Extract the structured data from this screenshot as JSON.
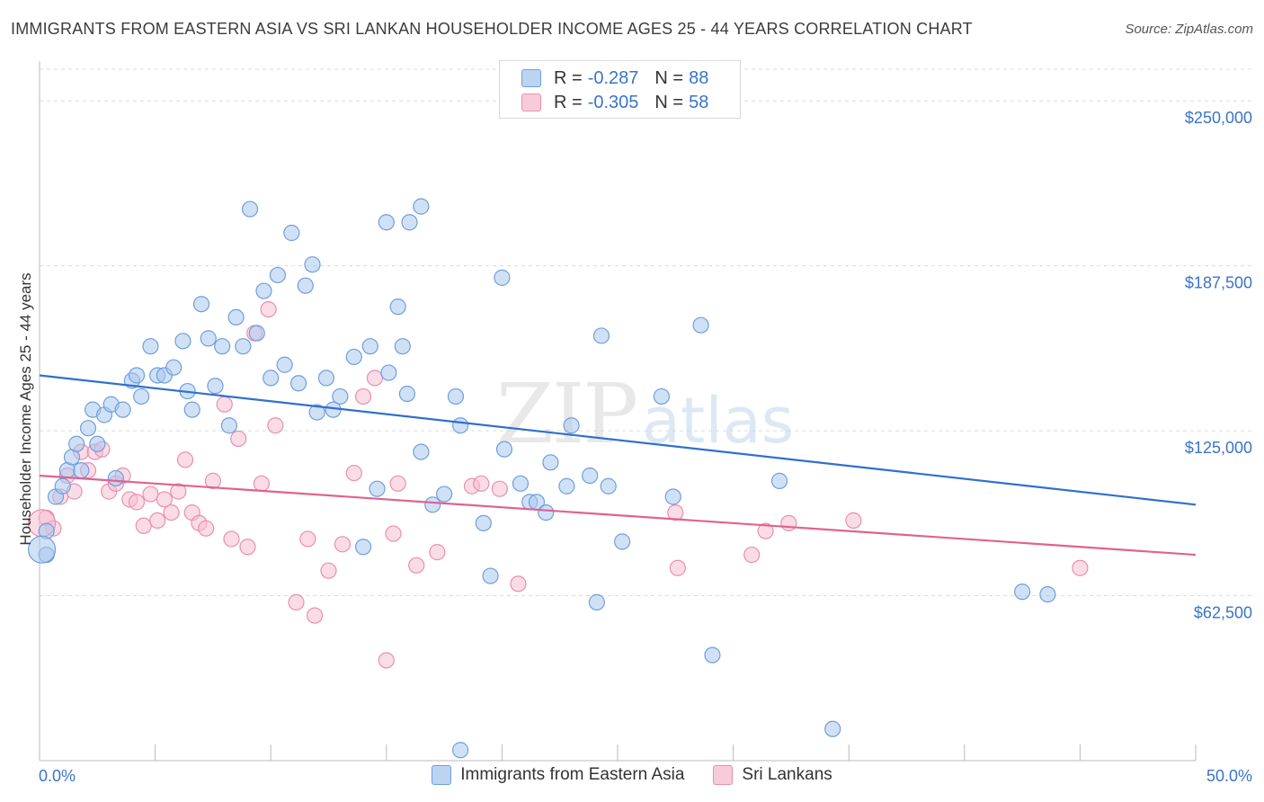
{
  "title": "IMMIGRANTS FROM EASTERN ASIA VS SRI LANKAN HOUSEHOLDER INCOME AGES 25 - 44 YEARS CORRELATION CHART",
  "source": "Source: ZipAtlas.com",
  "watermark": {
    "zip": "ZIP",
    "atlas": "atlas"
  },
  "legend": {
    "r_label": "R =",
    "n_label": "N =",
    "rows": [
      {
        "r": "-0.287",
        "n": "88"
      },
      {
        "r": "-0.305",
        "n": "58"
      }
    ]
  },
  "colors": {
    "blue_fill": "#a9c8ef",
    "blue_stroke": "#6f9fdc",
    "blue_line": "#2f6fcf",
    "pink_fill": "#f6bfd2",
    "pink_stroke": "#e98fb0",
    "pink_line": "#e0628f",
    "tick_text": "#3a74c8",
    "grid": "#dcdcdc"
  },
  "chart_data": {
    "type": "scatter",
    "title": "IMMIGRANTS FROM EASTERN ASIA VS SRI LANKAN HOUSEHOLDER INCOME AGES 25 - 44 YEARS CORRELATION CHART",
    "xlabel": "",
    "ylabel": "Householder Income Ages 25 - 44 years",
    "xlim": [
      0,
      50
    ],
    "ylim": [
      0,
      262000
    ],
    "x_tick_labels": [
      "0.0%",
      "50.0%"
    ],
    "y_ticks": [
      62500,
      125000,
      187500,
      250000
    ],
    "y_tick_labels": [
      "$62,500",
      "$125,000",
      "$187,500",
      "$250,000"
    ],
    "grid": true,
    "legend_position": "top-center",
    "series": [
      {
        "name": "Immigrants from Eastern Asia",
        "trend": {
          "x": [
            0,
            50
          ],
          "y": [
            146000,
            97000
          ]
        },
        "points": [
          [
            0.3,
            87000
          ],
          [
            0.3,
            78000
          ],
          [
            0.7,
            100000
          ],
          [
            1.0,
            104000
          ],
          [
            1.2,
            110000
          ],
          [
            1.4,
            115000
          ],
          [
            1.6,
            120000
          ],
          [
            1.8,
            110000
          ],
          [
            2.1,
            126000
          ],
          [
            2.3,
            133000
          ],
          [
            2.5,
            120000
          ],
          [
            2.8,
            131000
          ],
          [
            3.1,
            135000
          ],
          [
            3.3,
            107000
          ],
          [
            3.6,
            133000
          ],
          [
            4.0,
            144000
          ],
          [
            4.2,
            146000
          ],
          [
            4.4,
            138000
          ],
          [
            4.8,
            157000
          ],
          [
            5.1,
            146000
          ],
          [
            5.4,
            146000
          ],
          [
            5.8,
            149000
          ],
          [
            6.2,
            159000
          ],
          [
            6.4,
            140000
          ],
          [
            6.6,
            133000
          ],
          [
            7.0,
            173000
          ],
          [
            7.3,
            160000
          ],
          [
            7.6,
            142000
          ],
          [
            7.9,
            157000
          ],
          [
            8.2,
            127000
          ],
          [
            8.5,
            168000
          ],
          [
            8.8,
            157000
          ],
          [
            9.1,
            209000
          ],
          [
            9.4,
            162000
          ],
          [
            9.7,
            178000
          ],
          [
            10.0,
            145000
          ],
          [
            10.3,
            184000
          ],
          [
            10.6,
            150000
          ],
          [
            10.9,
            200000
          ],
          [
            11.2,
            143000
          ],
          [
            11.5,
            180000
          ],
          [
            11.8,
            188000
          ],
          [
            12.0,
            132000
          ],
          [
            12.4,
            145000
          ],
          [
            12.7,
            133000
          ],
          [
            13.0,
            138000
          ],
          [
            13.6,
            153000
          ],
          [
            14.0,
            81000
          ],
          [
            14.3,
            157000
          ],
          [
            14.6,
            103000
          ],
          [
            15.0,
            204000
          ],
          [
            15.1,
            147000
          ],
          [
            15.5,
            172000
          ],
          [
            15.7,
            157000
          ],
          [
            15.9,
            139000
          ],
          [
            16.0,
            204000
          ],
          [
            16.5,
            210000
          ],
          [
            16.5,
            117000
          ],
          [
            17.0,
            97000
          ],
          [
            17.5,
            101000
          ],
          [
            18.0,
            138000
          ],
          [
            18.2,
            127000
          ],
          [
            19.2,
            90000
          ],
          [
            19.5,
            70000
          ],
          [
            20.0,
            183000
          ],
          [
            20.1,
            118000
          ],
          [
            20.8,
            105000
          ],
          [
            21.2,
            98000
          ],
          [
            21.5,
            98000
          ],
          [
            21.9,
            94000
          ],
          [
            22.1,
            113000
          ],
          [
            22.8,
            104000
          ],
          [
            23.0,
            127000
          ],
          [
            23.8,
            108000
          ],
          [
            24.1,
            60000
          ],
          [
            24.3,
            161000
          ],
          [
            24.6,
            104000
          ],
          [
            25.2,
            83000
          ],
          [
            26.9,
            138000
          ],
          [
            27.4,
            100000
          ],
          [
            28.6,
            165000
          ],
          [
            29.1,
            40000
          ],
          [
            32.0,
            106000
          ],
          [
            42.5,
            64000
          ],
          [
            43.6,
            63000
          ],
          [
            18.2,
            4000
          ],
          [
            34.3,
            12000
          ],
          [
            0.1,
            80000
          ]
        ]
      },
      {
        "name": "Sri Lankans",
        "trend": {
          "x": [
            0,
            50
          ],
          "y": [
            108000,
            78000
          ]
        },
        "points": [
          [
            0.3,
            92000
          ],
          [
            0.6,
            88000
          ],
          [
            0.9,
            100000
          ],
          [
            1.2,
            108000
          ],
          [
            1.5,
            102000
          ],
          [
            1.8,
            117000
          ],
          [
            2.1,
            110000
          ],
          [
            2.4,
            117000
          ],
          [
            2.7,
            118000
          ],
          [
            3.0,
            102000
          ],
          [
            3.3,
            105000
          ],
          [
            3.6,
            108000
          ],
          [
            3.9,
            99000
          ],
          [
            4.2,
            98000
          ],
          [
            4.5,
            89000
          ],
          [
            4.8,
            101000
          ],
          [
            5.1,
            91000
          ],
          [
            5.4,
            99000
          ],
          [
            5.7,
            94000
          ],
          [
            6.0,
            102000
          ],
          [
            6.3,
            114000
          ],
          [
            6.6,
            94000
          ],
          [
            6.9,
            90000
          ],
          [
            7.2,
            88000
          ],
          [
            7.5,
            106000
          ],
          [
            8.0,
            135000
          ],
          [
            8.3,
            84000
          ],
          [
            8.6,
            122000
          ],
          [
            9.0,
            81000
          ],
          [
            9.3,
            162000
          ],
          [
            9.6,
            105000
          ],
          [
            9.9,
            171000
          ],
          [
            10.2,
            127000
          ],
          [
            11.1,
            60000
          ],
          [
            11.6,
            84000
          ],
          [
            11.9,
            55000
          ],
          [
            12.5,
            72000
          ],
          [
            13.1,
            82000
          ],
          [
            13.6,
            109000
          ],
          [
            14.0,
            138000
          ],
          [
            14.5,
            145000
          ],
          [
            15.0,
            38000
          ],
          [
            15.3,
            86000
          ],
          [
            15.5,
            105000
          ],
          [
            16.3,
            74000
          ],
          [
            17.2,
            79000
          ],
          [
            18.7,
            104000
          ],
          [
            19.1,
            105000
          ],
          [
            19.9,
            103000
          ],
          [
            20.7,
            67000
          ],
          [
            27.5,
            94000
          ],
          [
            27.6,
            73000
          ],
          [
            30.8,
            78000
          ],
          [
            31.4,
            87000
          ],
          [
            32.4,
            90000
          ],
          [
            35.2,
            91000
          ],
          [
            45.0,
            73000
          ],
          [
            0.1,
            90000
          ]
        ]
      }
    ]
  },
  "bottom_legend": [
    "Immigrants from Eastern Asia",
    "Sri Lankans"
  ]
}
